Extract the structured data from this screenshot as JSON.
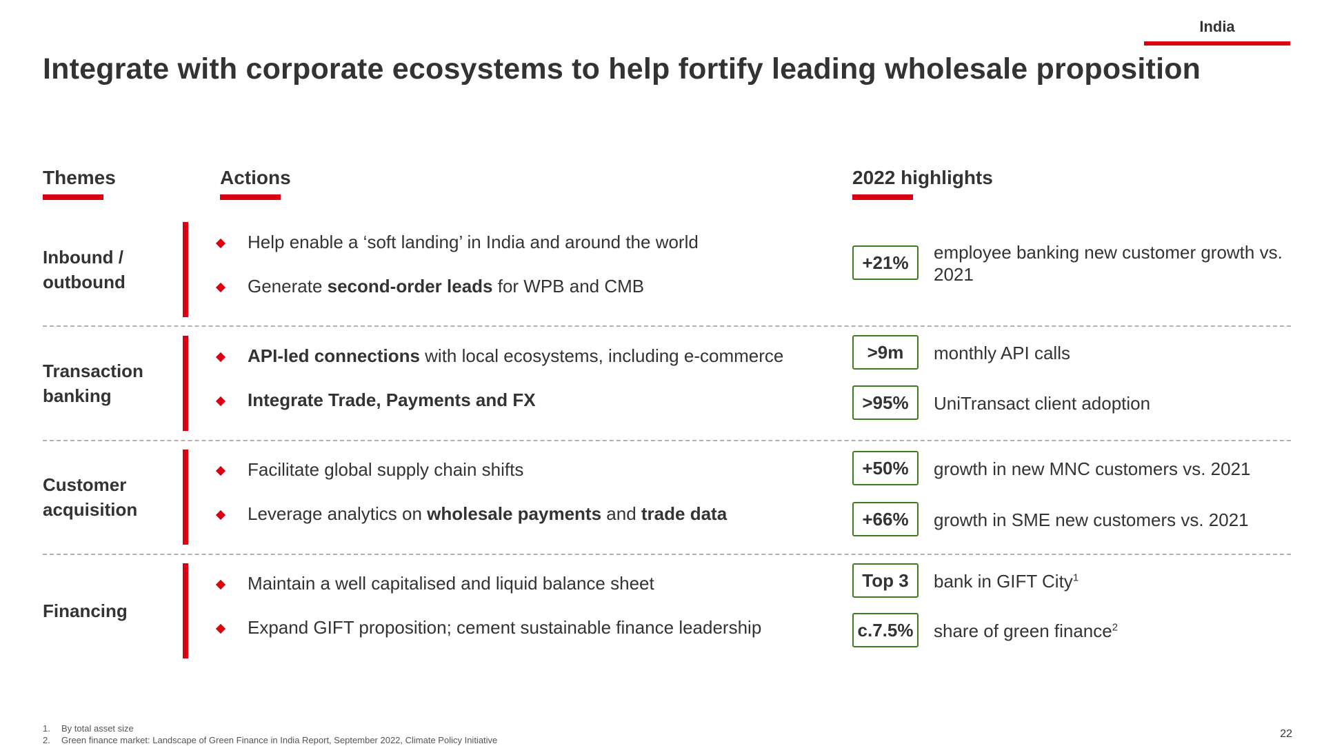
{
  "header": {
    "region_tag": "India",
    "title": "Integrate with corporate ecosystems to help fortify leading wholesale proposition"
  },
  "columns": {
    "themes": "Themes",
    "actions": "Actions",
    "highlights": "2022 highlights"
  },
  "colors": {
    "accent_red": "#db0011",
    "box_border_green": "#3d7a1e",
    "text": "#333333"
  },
  "rows": [
    {
      "theme": "Inbound / outbound",
      "actions": [
        {
          "parts": [
            {
              "text": "Help enable a ‘soft landing’ in India and around the world",
              "bold": false
            }
          ]
        },
        {
          "parts": [
            {
              "text": "Generate ",
              "bold": false
            },
            {
              "text": "second-order leads",
              "bold": true
            },
            {
              "text": " for WPB and CMB",
              "bold": false
            }
          ]
        }
      ],
      "highlights": [
        {
          "value": "+21%",
          "desc": "employee banking new customer growth vs. 2021",
          "sup": ""
        }
      ]
    },
    {
      "theme": "Transaction banking",
      "actions": [
        {
          "parts": [
            {
              "text": "API-led connections",
              "bold": true
            },
            {
              "text": " with local ecosystems, including e-commerce",
              "bold": false
            }
          ]
        },
        {
          "parts": [
            {
              "text": "Integrate Trade, Payments and FX",
              "bold": true
            }
          ]
        }
      ],
      "highlights": [
        {
          "value": ">9m",
          "desc": "monthly API calls",
          "sup": ""
        },
        {
          "value": ">95%",
          "desc": "UniTransact client adoption",
          "sup": ""
        }
      ]
    },
    {
      "theme": "Customer acquisition",
      "actions": [
        {
          "parts": [
            {
              "text": "Facilitate global supply chain shifts",
              "bold": false
            }
          ]
        },
        {
          "parts": [
            {
              "text": "Leverage analytics on ",
              "bold": false
            },
            {
              "text": "wholesale payments",
              "bold": true
            },
            {
              "text": " and ",
              "bold": false
            },
            {
              "text": "trade data",
              "bold": true
            }
          ]
        }
      ],
      "highlights": [
        {
          "value": "+50%",
          "desc": "growth in new MNC customers vs. 2021",
          "sup": ""
        },
        {
          "value": "+66%",
          "desc": "growth in SME new customers vs. 2021",
          "sup": ""
        }
      ]
    },
    {
      "theme": "Financing",
      "actions": [
        {
          "parts": [
            {
              "text": "Maintain a well capitalised and liquid balance sheet",
              "bold": false
            }
          ]
        },
        {
          "parts": [
            {
              "text": "Expand GIFT proposition; cement sustainable finance leadership",
              "bold": false
            }
          ]
        }
      ],
      "highlights": [
        {
          "value": "Top 3",
          "desc": "bank in GIFT City",
          "sup": "1"
        },
        {
          "value": "c.7.5%",
          "desc": "share of green finance",
          "sup": "2"
        }
      ]
    }
  ],
  "footnotes": [
    {
      "num": "1.",
      "text": "By total asset size"
    },
    {
      "num": "2.",
      "text": "Green finance market: Landscape of Green Finance in India Report, September 2022, Climate Policy Initiative"
    }
  ],
  "page_number": "22"
}
